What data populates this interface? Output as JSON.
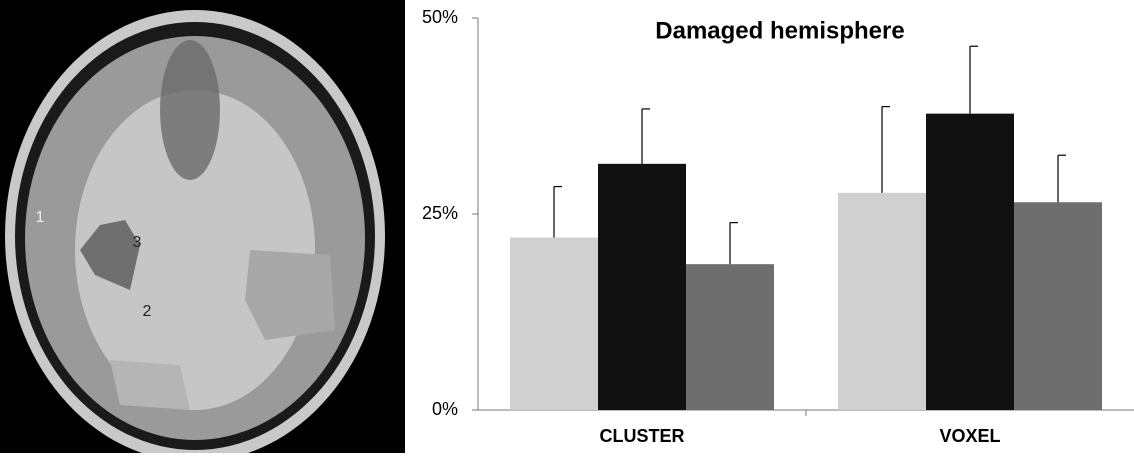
{
  "chart_data": {
    "type": "bar",
    "title": "Damaged hemisphere",
    "categories": [
      "CLUSTER",
      "VOXEL"
    ],
    "series": [
      {
        "color": "#d0d0d0",
        "values": [
          22,
          27.7
        ],
        "errors": [
          6.5,
          11
        ]
      },
      {
        "color": "#111111",
        "values": [
          31.4,
          37.8
        ],
        "errors": [
          7,
          8.6
        ]
      },
      {
        "color": "#6e6e6e",
        "values": [
          18.6,
          26.5
        ],
        "errors": [
          5.3,
          6
        ]
      }
    ],
    "ylim": [
      0,
      50
    ],
    "yticks": [
      {
        "value": 0,
        "label": "0%"
      },
      {
        "value": 25,
        "label": "25%"
      },
      {
        "value": 50,
        "label": "50%"
      }
    ]
  },
  "image": {
    "labels": [
      "1",
      "2",
      "3"
    ]
  }
}
